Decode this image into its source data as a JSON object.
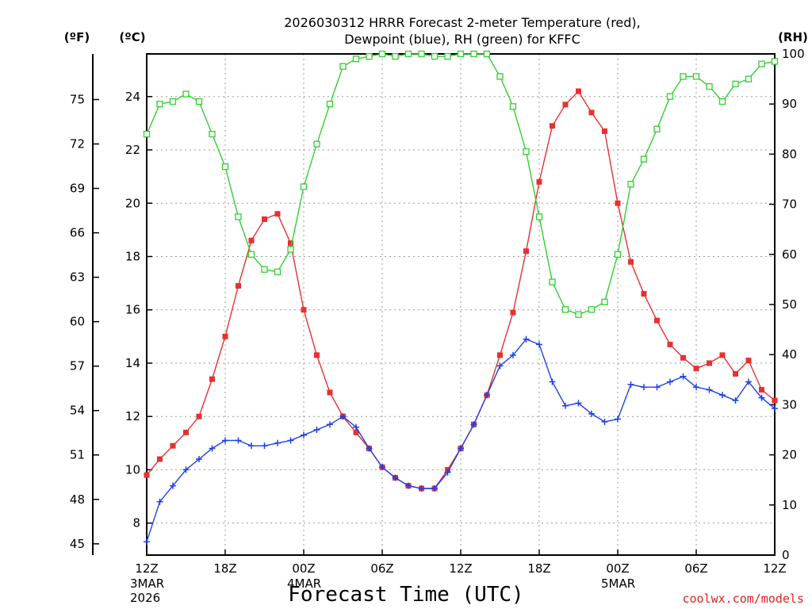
{
  "chart_data": {
    "type": "line",
    "title_line1": "2026030312 HRRR Forecast 2-meter Temperature (red),",
    "title_line2": "Dewpoint (blue), RH (green) for KFFC",
    "xlabel": "Forecast Time (UTC)",
    "credit": "coolwx.com/models",
    "units": {
      "fahrenheit": "(ºF)",
      "celsius": "(ºC)",
      "rh": "(RH)"
    },
    "x_forecast_hours_range": [
      0,
      48
    ],
    "y_celsius_range": [
      6.8,
      25.6
    ],
    "y_rh_range": [
      0,
      100
    ],
    "celsius_ticks": [
      8,
      10,
      12,
      14,
      16,
      18,
      20,
      22,
      24
    ],
    "fahrenheit_ticks": [
      45,
      48,
      51,
      54,
      57,
      60,
      63,
      66,
      69,
      72,
      75
    ],
    "rh_ticks": [
      0,
      10,
      20,
      30,
      40,
      50,
      60,
      70,
      80,
      90,
      100
    ],
    "x_ticks": [
      {
        "hour": 0,
        "label": "12Z",
        "sub1": "3MAR",
        "sub2": "2026"
      },
      {
        "hour": 6,
        "label": "18Z",
        "sub1": "",
        "sub2": ""
      },
      {
        "hour": 12,
        "label": "00Z",
        "sub1": "4MAR",
        "sub2": ""
      },
      {
        "hour": 18,
        "label": "06Z",
        "sub1": "",
        "sub2": ""
      },
      {
        "hour": 24,
        "label": "12Z",
        "sub1": "",
        "sub2": ""
      },
      {
        "hour": 30,
        "label": "18Z",
        "sub1": "",
        "sub2": ""
      },
      {
        "hour": 36,
        "label": "00Z",
        "sub1": "5MAR",
        "sub2": ""
      },
      {
        "hour": 42,
        "label": "06Z",
        "sub1": "",
        "sub2": ""
      },
      {
        "hour": 48,
        "label": "12Z",
        "sub1": "",
        "sub2": ""
      }
    ],
    "series": [
      {
        "name": "Temperature",
        "axis": "celsius",
        "color": "#e83030",
        "marker": "filled-square",
        "values": [
          9.8,
          10.4,
          10.9,
          11.4,
          12.0,
          13.4,
          15.0,
          16.9,
          18.6,
          19.4,
          19.6,
          18.5,
          16.0,
          14.3,
          12.9,
          12.0,
          11.4,
          10.8,
          10.1,
          9.7,
          9.4,
          9.3,
          9.3,
          10.0,
          10.8,
          11.7,
          12.8,
          14.3,
          15.9,
          18.2,
          20.8,
          22.9,
          23.7,
          24.2,
          23.4,
          22.7,
          20.0,
          17.8,
          16.6,
          15.6,
          14.7,
          14.2,
          13.8,
          14.0,
          14.3,
          13.6,
          14.1,
          13.0,
          12.6
        ]
      },
      {
        "name": "Dewpoint",
        "axis": "celsius",
        "color": "#2040e8",
        "marker": "plus",
        "values": [
          7.3,
          8.8,
          9.4,
          10.0,
          10.4,
          10.8,
          11.1,
          11.1,
          10.9,
          10.9,
          11.0,
          11.1,
          11.3,
          11.5,
          11.7,
          12.0,
          11.6,
          10.8,
          10.1,
          9.7,
          9.4,
          9.3,
          9.3,
          9.9,
          10.8,
          11.7,
          12.8,
          13.9,
          14.3,
          14.9,
          14.7,
          13.3,
          12.4,
          12.5,
          12.1,
          11.8,
          11.9,
          13.2,
          13.1,
          13.1,
          13.3,
          13.5,
          13.1,
          13.0,
          12.8,
          12.6,
          13.3,
          12.7,
          12.3
        ]
      },
      {
        "name": "RH",
        "axis": "rh",
        "color": "#30d030",
        "marker": "open-square",
        "values": [
          84,
          90,
          90.5,
          92,
          90.5,
          84,
          77.5,
          67.5,
          60,
          57,
          56.5,
          61,
          73.5,
          82,
          90,
          97.5,
          99,
          99.5,
          100,
          99.5,
          100,
          100,
          99.5,
          99.5,
          100,
          100,
          100,
          95.5,
          89.5,
          80.5,
          67.5,
          54.5,
          49,
          48,
          49,
          50.5,
          60,
          74,
          79,
          85,
          91.5,
          95.5,
          95.5,
          93.5,
          90.5,
          94,
          95,
          98,
          98.5
        ]
      }
    ]
  }
}
